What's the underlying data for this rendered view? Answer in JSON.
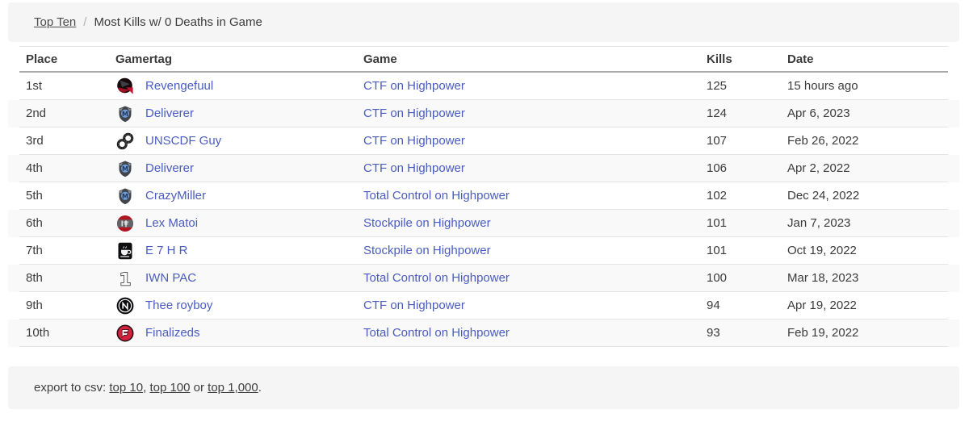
{
  "breadcrumb": {
    "link": "Top Ten",
    "separator": "/",
    "current": "Most Kills w/ 0 Deaths in Game"
  },
  "table": {
    "headers": [
      "Place",
      "Gamertag",
      "Game",
      "Kills",
      "Date"
    ],
    "rows": [
      {
        "place": "1st",
        "gamertag": "Revengefuul",
        "emblem": "red-black-crest-icon",
        "game": "CTF on Highpower",
        "kills": "125",
        "date": "15 hours ago"
      },
      {
        "place": "2nd",
        "gamertag": "Deliverer",
        "emblem": "gray-shield-icon",
        "game": "CTF on Highpower",
        "kills": "124",
        "date": "Apr 6, 2023"
      },
      {
        "place": "3rd",
        "gamertag": "UNSCDF Guy",
        "emblem": "chain-links-icon",
        "game": "CTF on Highpower",
        "kills": "107",
        "date": "Feb 26, 2022"
      },
      {
        "place": "4th",
        "gamertag": "Deliverer",
        "emblem": "gray-shield-icon",
        "game": "CTF on Highpower",
        "kills": "106",
        "date": "Apr 2, 2022"
      },
      {
        "place": "5th",
        "gamertag": "CrazyMiller",
        "emblem": "gray-shield-icon",
        "game": "Total Control on Highpower",
        "kills": "102",
        "date": "Dec 24, 2022"
      },
      {
        "place": "6th",
        "gamertag": "Lex Matoi",
        "emblem": "samurai-kanji-icon",
        "game": "Stockpile on Highpower",
        "kills": "101",
        "date": "Jan 7, 2023"
      },
      {
        "place": "7th",
        "gamertag": "E 7 H R",
        "emblem": "coffee-cup-icon",
        "game": "Stockpile on Highpower",
        "kills": "101",
        "date": "Oct 19, 2022"
      },
      {
        "place": "8th",
        "gamertag": "IWN PAC",
        "emblem": "numeral-one-icon",
        "game": "Total Control on Highpower",
        "kills": "100",
        "date": "Mar 18, 2023"
      },
      {
        "place": "9th",
        "gamertag": "Thee royboy",
        "emblem": "circle-n-icon",
        "game": "CTF on Highpower",
        "kills": "94",
        "date": "Apr 19, 2022"
      },
      {
        "place": "10th",
        "gamertag": "Finalizeds",
        "emblem": "red-f-badge-icon",
        "game": "Total Control on Highpower",
        "kills": "93",
        "date": "Feb 19, 2022"
      }
    ]
  },
  "footer": {
    "prefix": "export to csv: ",
    "links": [
      "top 10",
      "top 100",
      "top 1,000"
    ],
    "sep1": ", ",
    "sep2": " or ",
    "suffix": "."
  },
  "colors": {
    "link_blue": "#4a5cbf",
    "bar_bg": "#f5f5f5",
    "row_stripe": "#f9f9f9",
    "row_border": "#e4e4e4",
    "header_border": "#a9a9a9",
    "accent_red": "#c41230"
  }
}
